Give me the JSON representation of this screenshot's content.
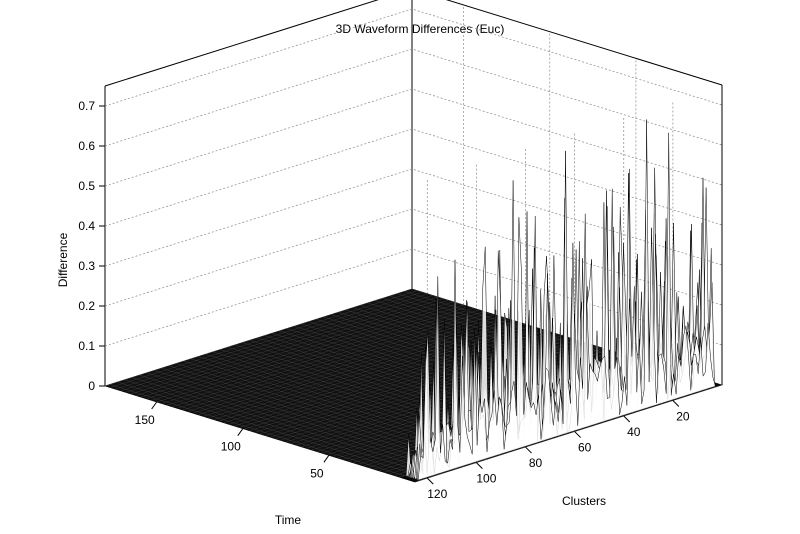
{
  "chart_data": {
    "type": "surface",
    "title": "3D Waveform Differences (Euc)",
    "xlabel": "Time",
    "ylabel": "Clusters",
    "zlabel": "Difference",
    "x_ticks": [
      "50",
      "100",
      "150"
    ],
    "y_ticks": [
      "20",
      "40",
      "60",
      "80",
      "100",
      "120"
    ],
    "z_ticks": [
      "0",
      "0.1",
      "0.2",
      "0.3",
      "0.4",
      "0.5",
      "0.6",
      "0.7"
    ],
    "xlim": [
      0,
      180
    ],
    "ylim": [
      0,
      125
    ],
    "zlim": [
      0,
      0.75
    ],
    "grid": true,
    "colormap": "#000000",
    "surface_mesh": "#ffffff",
    "description_of_data": {
      "flat_region_difference": 0.0,
      "active_time_range": [
        1,
        8
      ],
      "peak_difference": 0.73,
      "typical_peak_range": [
        0.3,
        0.7
      ]
    }
  }
}
